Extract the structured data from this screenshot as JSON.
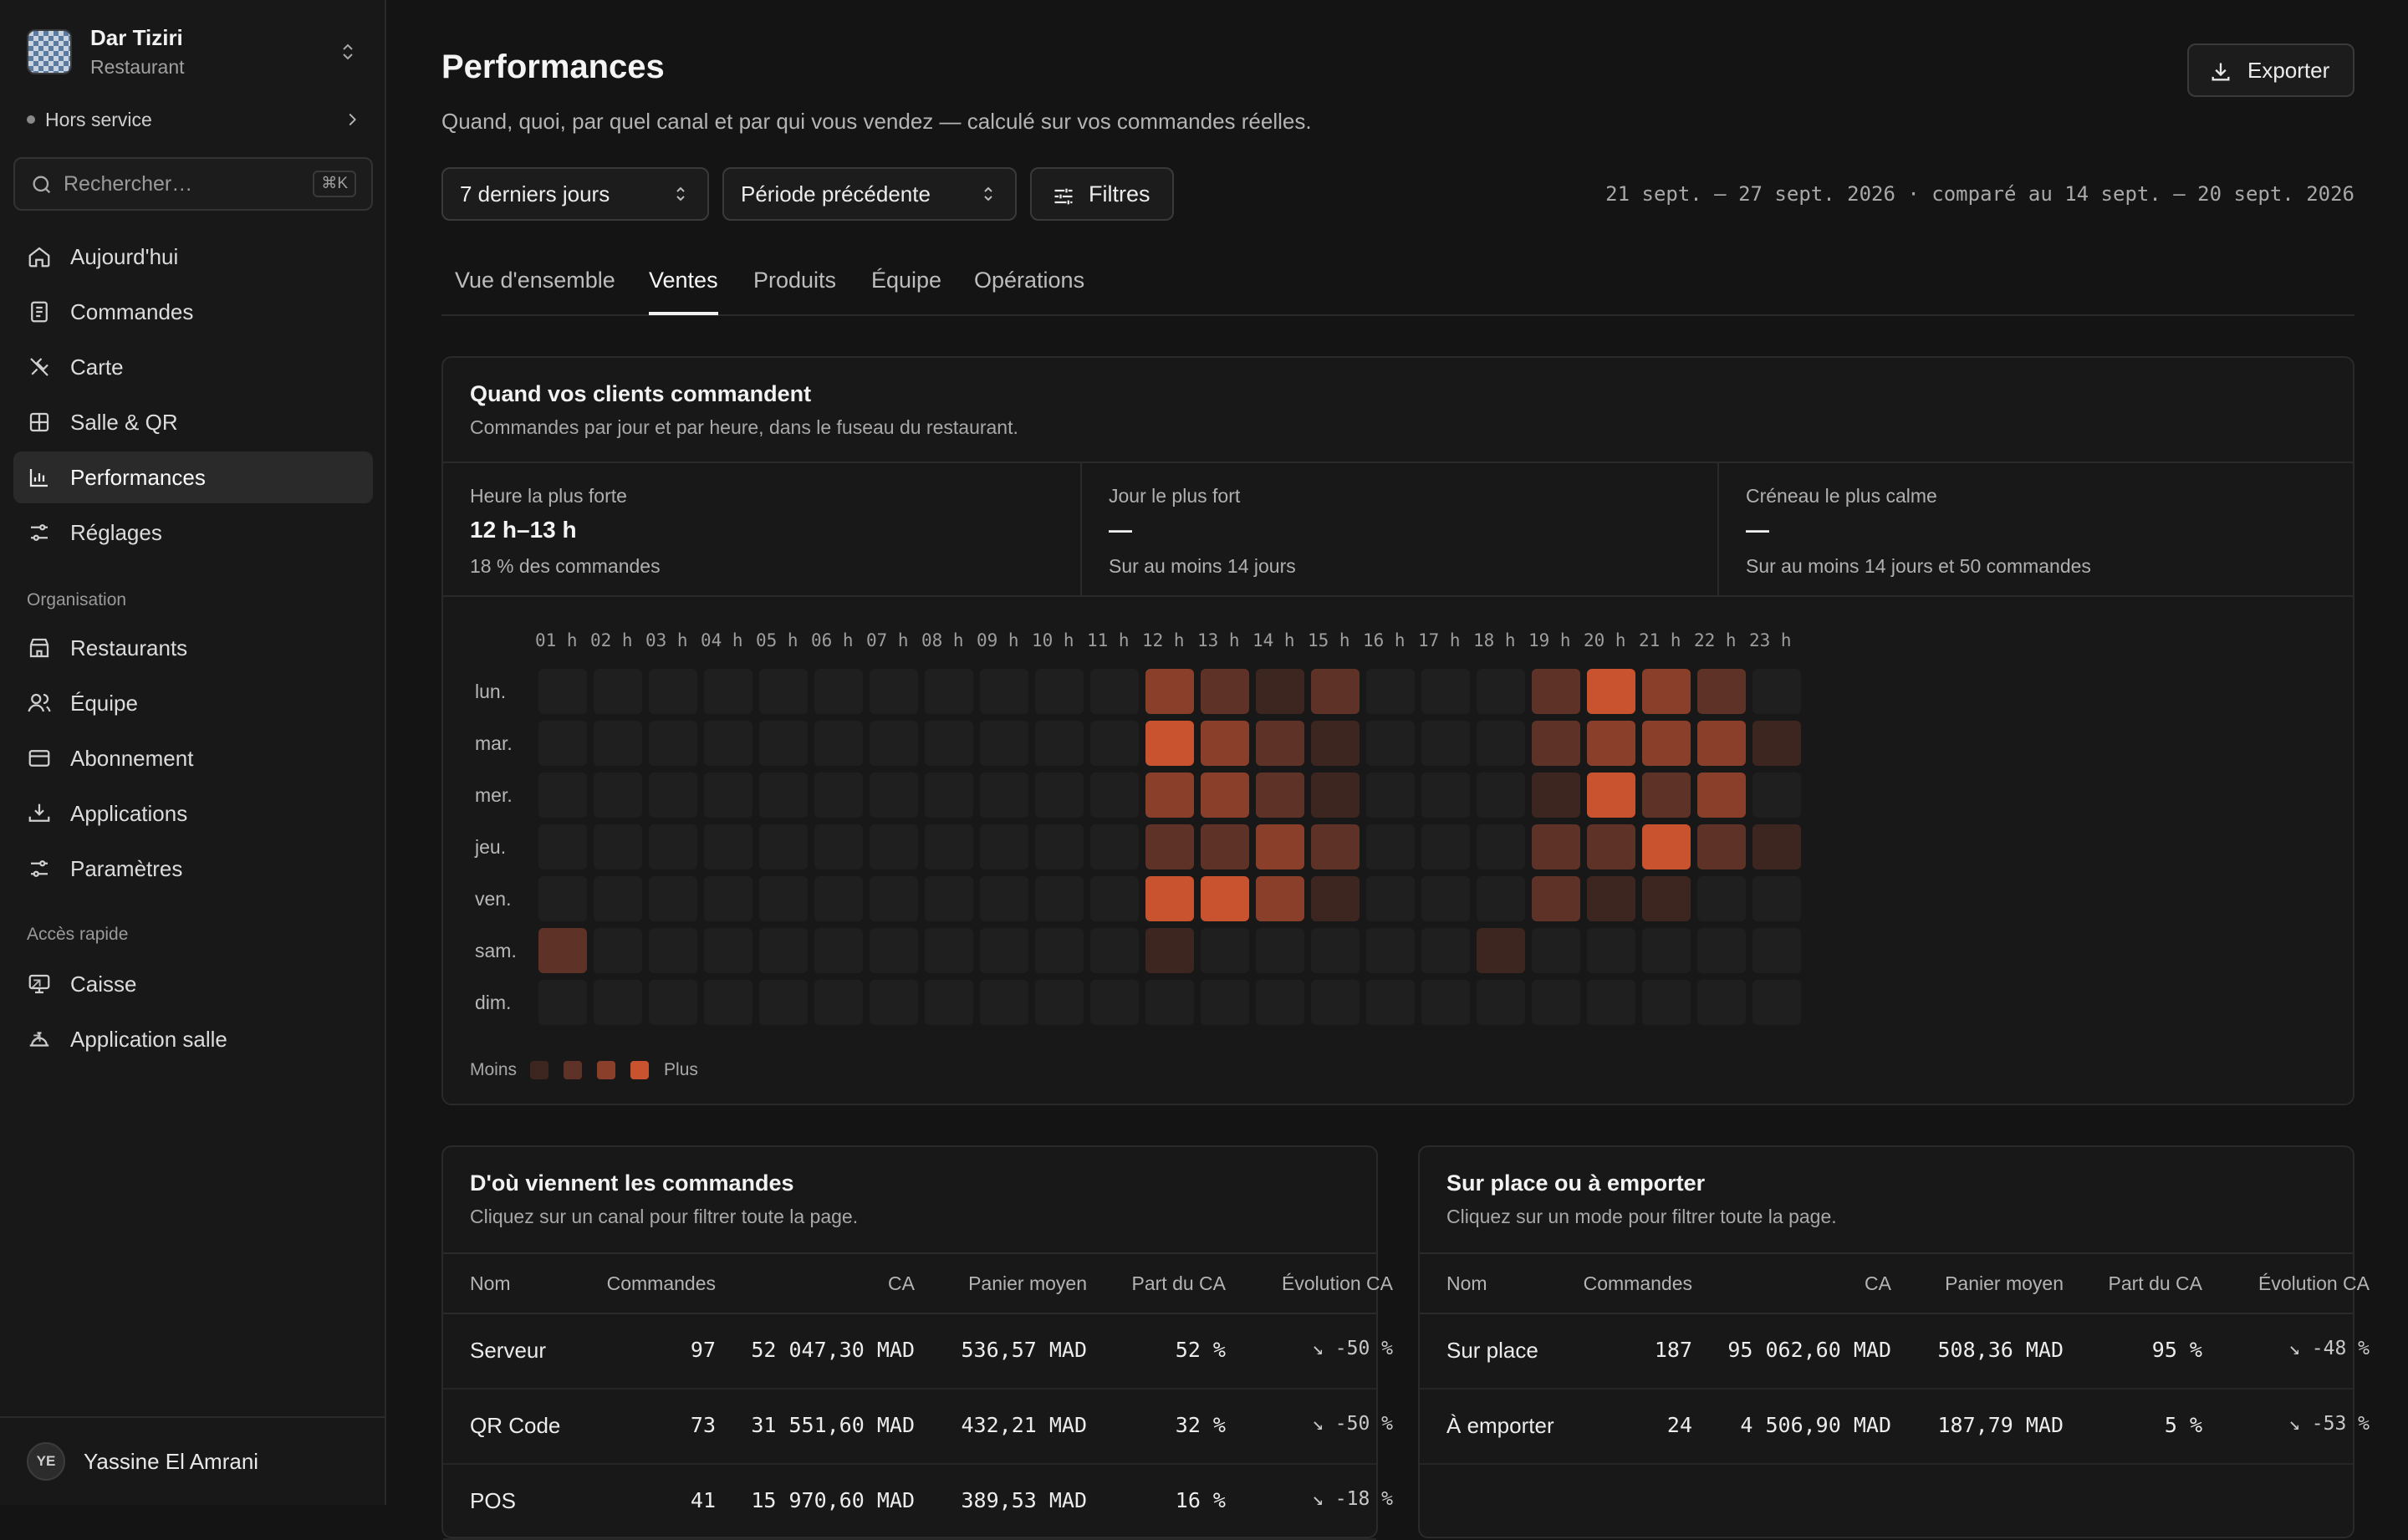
{
  "org": {
    "name": "Dar Tiziri",
    "type": "Restaurant"
  },
  "status": "Hors service",
  "search": {
    "placeholder": "Rechercher…",
    "shortcut": "⌘K"
  },
  "nav": [
    {
      "label": "Aujourd'hui",
      "icon": "home-icon"
    },
    {
      "label": "Commandes",
      "icon": "receipt-icon"
    },
    {
      "label": "Carte",
      "icon": "utensils-icon"
    },
    {
      "label": "Salle & QR",
      "icon": "grid-icon"
    },
    {
      "label": "Performances",
      "icon": "bar-chart-icon",
      "active": true
    },
    {
      "label": "Réglages",
      "icon": "sliders-icon"
    }
  ],
  "org_section": {
    "label": "Organisation",
    "items": [
      {
        "label": "Restaurants",
        "icon": "store-icon"
      },
      {
        "label": "Équipe",
        "icon": "users-icon"
      },
      {
        "label": "Abonnement",
        "icon": "credit-card-icon"
      },
      {
        "label": "Applications",
        "icon": "download-tray-icon"
      },
      {
        "label": "Paramètres",
        "icon": "settings-sliders-icon"
      }
    ]
  },
  "quick_section": {
    "label": "Accès rapide",
    "items": [
      {
        "label": "Caisse",
        "icon": "monitor-icon"
      },
      {
        "label": "Application salle",
        "icon": "cloche-icon"
      }
    ]
  },
  "user": {
    "initials": "YE",
    "name": "Yassine El Amrani"
  },
  "page": {
    "title": "Performances",
    "subtitle": "Quand, quoi, par quel canal et par qui vous vendez — calculé sur vos commandes réelles.",
    "export_label": "Exporter",
    "period_select": "7 derniers jours",
    "compare_select": "Période précédente",
    "filters_label": "Filtres",
    "date_range": "21 sept. – 27 sept. 2026 · comparé au 14 sept. – 20 sept. 2026",
    "tabs": [
      "Vue d'ensemble",
      "Ventes",
      "Produits",
      "Équipe",
      "Opérations"
    ],
    "active_tab": "Ventes"
  },
  "when_card": {
    "title": "Quand vos clients commandent",
    "subtitle": "Commandes par jour et par heure, dans le fuseau du restaurant.",
    "stats": [
      {
        "label": "Heure la plus forte",
        "value": "12 h–13 h",
        "note": "18 % des commandes"
      },
      {
        "label": "Jour le plus fort",
        "value": "—",
        "note": "Sur au moins 14 jours"
      },
      {
        "label": "Créneau le plus calme",
        "value": "—",
        "note": "Sur au moins 14 jours et 50 commandes"
      }
    ],
    "legend_low": "Moins",
    "legend_high": "Plus",
    "colors": {
      "empty": "#1f1f1f",
      "l1": "#3d2520",
      "l2": "#5e3226",
      "l3": "#8a3f2b",
      "l4": "#c9532f"
    }
  },
  "chart_data": {
    "type": "heatmap",
    "x": [
      "01 h",
      "02 h",
      "03 h",
      "04 h",
      "05 h",
      "06 h",
      "07 h",
      "08 h",
      "09 h",
      "10 h",
      "11 h",
      "12 h",
      "13 h",
      "14 h",
      "15 h",
      "16 h",
      "17 h",
      "18 h",
      "19 h",
      "20 h",
      "21 h",
      "22 h",
      "23 h"
    ],
    "y": [
      "lun.",
      "mar.",
      "mer.",
      "jeu.",
      "ven.",
      "sam.",
      "dim."
    ],
    "values": [
      [
        0,
        0,
        0,
        0,
        0,
        0,
        0,
        0,
        0,
        0,
        0,
        3,
        2,
        1,
        2,
        0,
        0,
        0,
        2,
        4,
        3,
        2,
        0
      ],
      [
        0,
        0,
        0,
        0,
        0,
        0,
        0,
        0,
        0,
        0,
        0,
        4,
        3,
        2,
        1,
        0,
        0,
        0,
        2,
        3,
        3,
        3,
        1
      ],
      [
        0,
        0,
        0,
        0,
        0,
        0,
        0,
        0,
        0,
        0,
        0,
        3,
        3,
        2,
        1,
        0,
        0,
        0,
        1,
        4,
        2,
        3,
        0
      ],
      [
        0,
        0,
        0,
        0,
        0,
        0,
        0,
        0,
        0,
        0,
        0,
        2,
        2,
        3,
        2,
        0,
        0,
        0,
        2,
        2,
        4,
        2,
        1
      ],
      [
        0,
        0,
        0,
        0,
        0,
        0,
        0,
        0,
        0,
        0,
        0,
        4,
        4,
        3,
        1,
        0,
        0,
        0,
        2,
        1,
        1,
        0,
        0
      ],
      [
        2,
        0,
        0,
        0,
        0,
        0,
        0,
        0,
        0,
        0,
        0,
        1,
        0,
        0,
        0,
        0,
        0,
        1,
        0,
        0,
        0,
        0,
        0
      ],
      [
        0,
        0,
        0,
        0,
        0,
        0,
        0,
        0,
        0,
        0,
        0,
        0,
        0,
        0,
        0,
        0,
        0,
        0,
        0,
        0,
        0,
        0,
        0
      ]
    ],
    "scale": "0–4 intensity levels"
  },
  "channels": {
    "title": "D'où viennent les commandes",
    "subtitle": "Cliquez sur un canal pour filtrer toute la page.",
    "headers": [
      "Nom",
      "Commandes",
      "CA",
      "Panier moyen",
      "Part du CA",
      "Évolution CA"
    ],
    "rows": [
      [
        "Serveur",
        "97",
        "52 047,30 MAD",
        "536,57 MAD",
        "52 %",
        "↘ -50 %"
      ],
      [
        "QR Code",
        "73",
        "31 551,60 MAD",
        "432,21 MAD",
        "32 %",
        "↘ -50 %"
      ],
      [
        "POS",
        "41",
        "15 970,60 MAD",
        "389,53 MAD",
        "16 %",
        "↘ -18 %"
      ]
    ]
  },
  "modes": {
    "title": "Sur place ou à emporter",
    "subtitle": "Cliquez sur un mode pour filtrer toute la page.",
    "headers": [
      "Nom",
      "Commandes",
      "CA",
      "Panier moyen",
      "Part du CA",
      "Évolution CA"
    ],
    "rows": [
      [
        "Sur place",
        "187",
        "95 062,60 MAD",
        "508,36 MAD",
        "95 %",
        "↘ -48 %"
      ],
      [
        "À emporter",
        "24",
        "4 506,90 MAD",
        "187,79 MAD",
        "5 %",
        "↘ -53 %"
      ]
    ]
  }
}
